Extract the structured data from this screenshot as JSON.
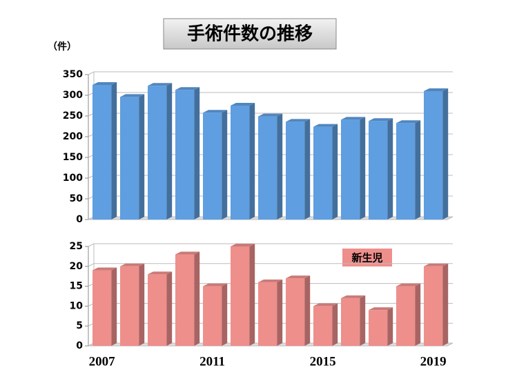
{
  "chart_data": [
    {
      "type": "bar",
      "title": "手術件数の推移",
      "unit_label": "（件）",
      "categories": [
        null,
        null,
        null,
        null,
        null,
        null,
        null,
        null,
        null,
        null,
        null,
        null,
        null
      ],
      "values": [
        325,
        296,
        323,
        313,
        258,
        275,
        249,
        236,
        224,
        241,
        238,
        233,
        310
      ],
      "color": "#5f9ee0",
      "ylim": [
        0,
        350
      ],
      "yticks": [
        0,
        50,
        100,
        150,
        200,
        250,
        300,
        350
      ],
      "grid": true
    },
    {
      "type": "bar",
      "annotation": "新生児",
      "categories": [
        "2007",
        null,
        null,
        null,
        "2011",
        null,
        null,
        null,
        "2015",
        null,
        null,
        null,
        "2019"
      ],
      "values": [
        19,
        20,
        18,
        23,
        15,
        25,
        16,
        17,
        10,
        12,
        9,
        15,
        20
      ],
      "color": "#ee8f8c",
      "ylim": [
        0,
        25
      ],
      "yticks": [
        0,
        5,
        10,
        15,
        20,
        25
      ],
      "grid": true
    }
  ]
}
